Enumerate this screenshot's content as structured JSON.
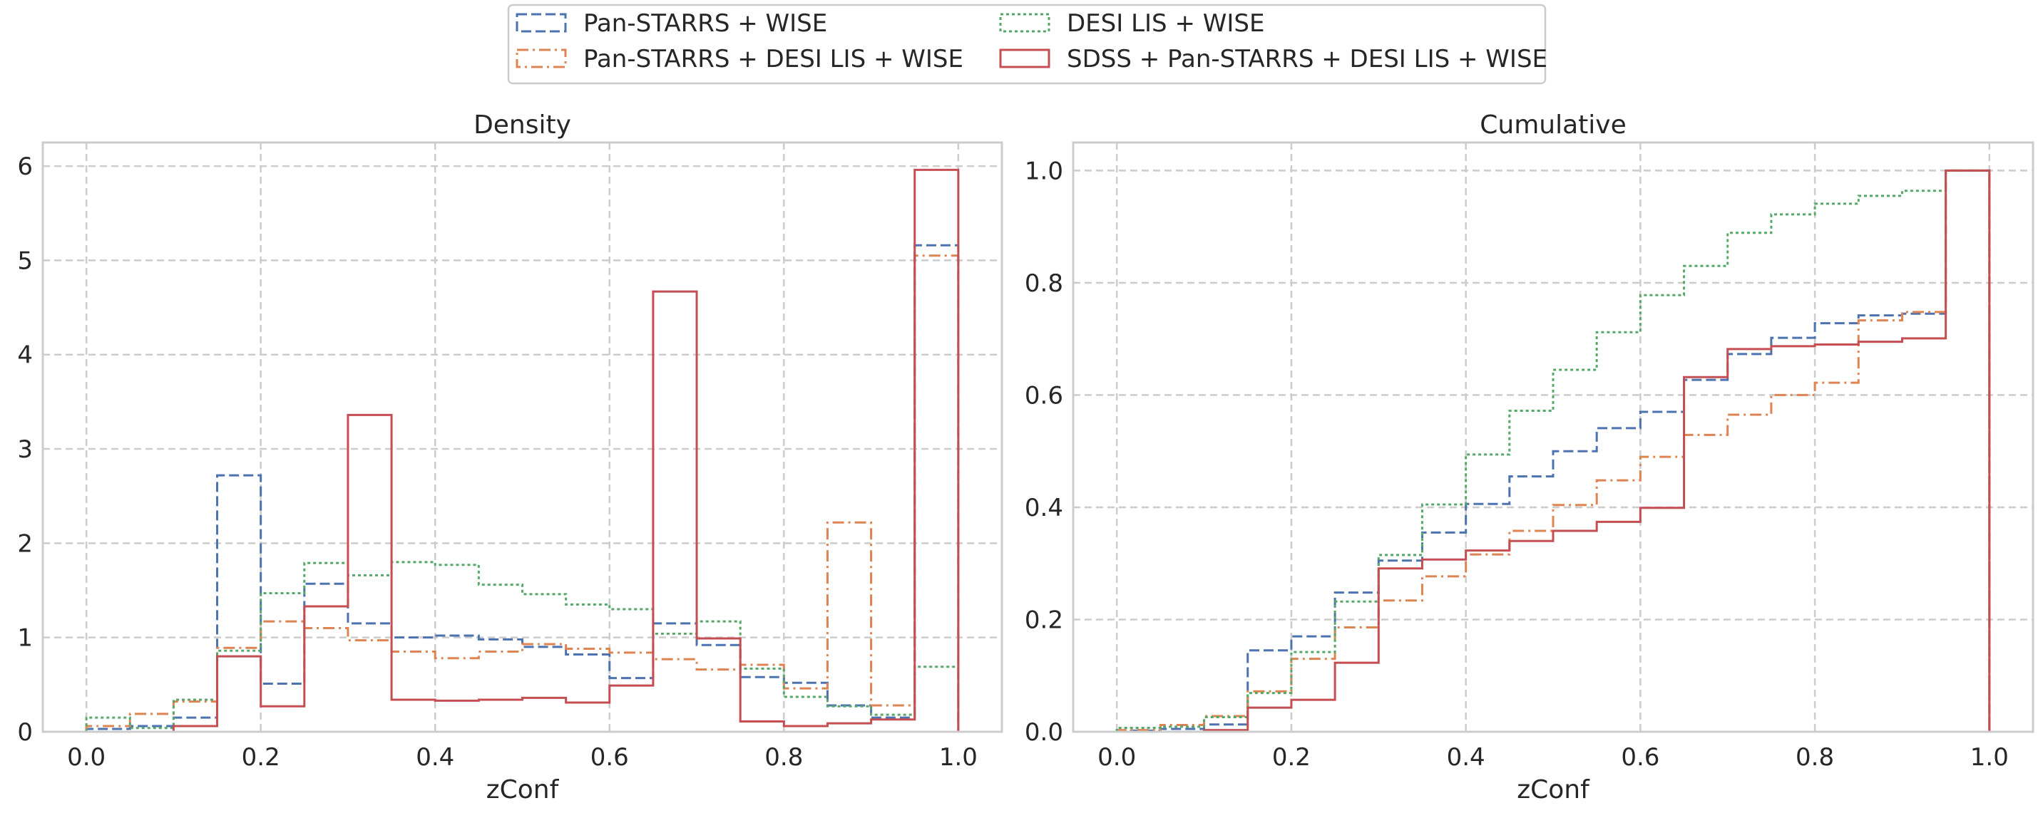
{
  "legend": {
    "entries": [
      {
        "label": "Pan-STARRS + WISE",
        "series": 0
      },
      {
        "label": "DESI LIS + WISE",
        "series": 2
      },
      {
        "label": "Pan-STARRS + DESI LIS + WISE",
        "series": 1
      },
      {
        "label": "SDSS + Pan-STARRS + DESI LIS + WISE",
        "series": 3
      }
    ],
    "placement": "top-center"
  },
  "series_style": [
    {
      "name": "Pan-STARRS + WISE",
      "color": "#4c72b0",
      "dash": "dashed"
    },
    {
      "name": "Pan-STARRS + DESI LIS + WISE",
      "color": "#dd8452",
      "dash": "dashdot"
    },
    {
      "name": "DESI LIS + WISE",
      "color": "#55a868",
      "dash": "dotted"
    },
    {
      "name": "SDSS + Pan-STARRS + DESI LIS + WISE",
      "color": "#c44e52",
      "dash": "solid"
    }
  ],
  "chart_data": [
    {
      "type": "area",
      "histtype": "step",
      "title": "Density",
      "xlabel": "zConf",
      "ylabel": "",
      "xlim": [
        -0.05,
        1.05
      ],
      "ylim": [
        0,
        6.25
      ],
      "xticks": [
        0.0,
        0.2,
        0.4,
        0.6,
        0.8,
        1.0
      ],
      "xtick_labels": [
        "0.0",
        "0.2",
        "0.4",
        "0.6",
        "0.8",
        "1.0"
      ],
      "yticks": [
        0,
        1,
        2,
        3,
        4,
        5,
        6
      ],
      "ytick_labels": [
        "0",
        "1",
        "2",
        "3",
        "4",
        "5",
        "6"
      ],
      "grid": true,
      "bin_edges": [
        0.0,
        0.05,
        0.1,
        0.15,
        0.2,
        0.25,
        0.3,
        0.35,
        0.4,
        0.45,
        0.5,
        0.55,
        0.6,
        0.65,
        0.7,
        0.75,
        0.8,
        0.85,
        0.9,
        0.95,
        1.0
      ],
      "series": [
        {
          "name": "Pan-STARRS + WISE",
          "values": [
            0.03,
            0.06,
            0.15,
            2.72,
            0.51,
            1.57,
            1.15,
            1.0,
            1.02,
            0.98,
            0.9,
            0.82,
            0.57,
            1.15,
            0.92,
            0.58,
            0.52,
            0.28,
            0.15,
            5.16
          ]
        },
        {
          "name": "Pan-STARRS + DESI LIS + WISE",
          "values": [
            0.06,
            0.19,
            0.32,
            0.89,
            1.17,
            1.1,
            0.97,
            0.85,
            0.78,
            0.85,
            0.93,
            0.88,
            0.84,
            0.77,
            0.66,
            0.71,
            0.46,
            2.22,
            0.28,
            5.05
          ]
        },
        {
          "name": "DESI LIS + WISE",
          "values": [
            0.15,
            0.04,
            0.34,
            0.86,
            1.47,
            1.79,
            1.66,
            1.8,
            1.77,
            1.56,
            1.46,
            1.35,
            1.3,
            1.04,
            1.17,
            0.67,
            0.37,
            0.27,
            0.18,
            0.69
          ]
        },
        {
          "name": "SDSS + Pan-STARRS + DESI LIS + WISE",
          "values": [
            0.0,
            0.0,
            0.06,
            0.8,
            0.27,
            1.33,
            3.36,
            0.34,
            0.33,
            0.34,
            0.36,
            0.31,
            0.49,
            4.67,
            0.99,
            0.11,
            0.06,
            0.09,
            0.13,
            5.96
          ]
        }
      ]
    },
    {
      "type": "area",
      "histtype": "step",
      "title": "Cumulative",
      "xlabel": "zConf",
      "ylabel": "",
      "xlim": [
        -0.05,
        1.05
      ],
      "ylim": [
        0,
        1.05
      ],
      "xticks": [
        0.0,
        0.2,
        0.4,
        0.6,
        0.8,
        1.0
      ],
      "xtick_labels": [
        "0.0",
        "0.2",
        "0.4",
        "0.6",
        "0.8",
        "1.0"
      ],
      "yticks": [
        0.0,
        0.2,
        0.4,
        0.6,
        0.8,
        1.0
      ],
      "ytick_labels": [
        "0.0",
        "0.2",
        "0.4",
        "0.6",
        "0.8",
        "1.0"
      ],
      "grid": true,
      "bin_edges": [
        0.0,
        0.05,
        0.1,
        0.15,
        0.2,
        0.25,
        0.3,
        0.35,
        0.4,
        0.45,
        0.5,
        0.55,
        0.6,
        0.65,
        0.7,
        0.75,
        0.8,
        0.85,
        0.9,
        0.95,
        1.0
      ],
      "series": [
        {
          "name": "Pan-STARRS + WISE",
          "values": [
            0.002,
            0.005,
            0.013,
            0.145,
            0.17,
            0.248,
            0.305,
            0.355,
            0.406,
            0.455,
            0.5,
            0.541,
            0.57,
            0.627,
            0.673,
            0.702,
            0.728,
            0.742,
            0.745,
            1.0
          ]
        },
        {
          "name": "Pan-STARRS + DESI LIS + WISE",
          "values": [
            0.003,
            0.012,
            0.028,
            0.072,
            0.13,
            0.186,
            0.234,
            0.277,
            0.316,
            0.358,
            0.404,
            0.448,
            0.49,
            0.529,
            0.565,
            0.6,
            0.622,
            0.733,
            0.748,
            1.0
          ]
        },
        {
          "name": "DESI LIS + WISE",
          "values": [
            0.007,
            0.009,
            0.026,
            0.069,
            0.142,
            0.232,
            0.315,
            0.405,
            0.494,
            0.572,
            0.645,
            0.712,
            0.778,
            0.83,
            0.889,
            0.922,
            0.941,
            0.955,
            0.964,
            1.0
          ]
        },
        {
          "name": "SDSS + Pan-STARRS + DESI LIS + WISE",
          "values": [
            0.0,
            0.0,
            0.003,
            0.043,
            0.057,
            0.123,
            0.291,
            0.307,
            0.323,
            0.34,
            0.358,
            0.374,
            0.399,
            0.632,
            0.682,
            0.687,
            0.69,
            0.695,
            0.701,
            1.0
          ]
        }
      ]
    }
  ]
}
